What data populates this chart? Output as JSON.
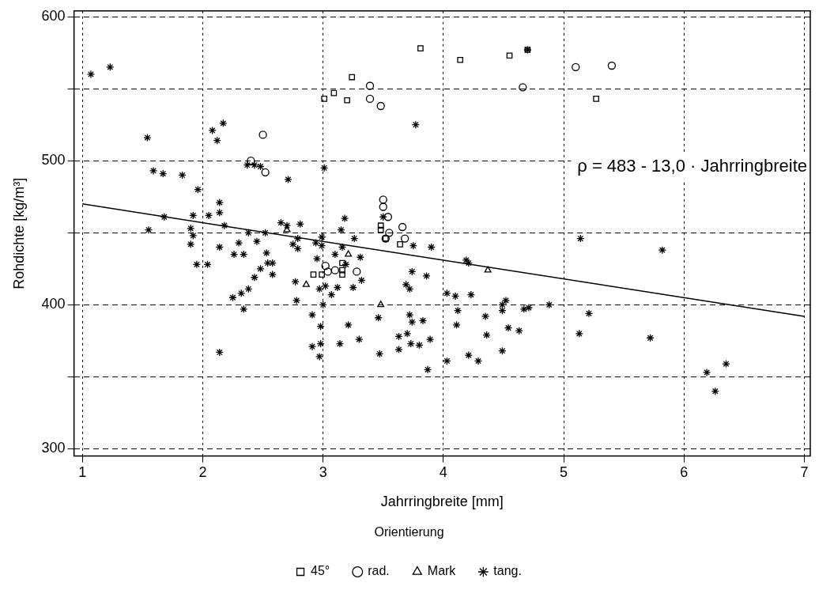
{
  "chart_data": {
    "type": "scatter",
    "xlabel": "Jahrringbreite [mm]",
    "ylabel": "Rohdichte [kg/m³]",
    "legend_title": "Orientierung",
    "annotations": [
      "ρ = 483 - 13,0 · Jahrringbreite"
    ],
    "xlim": [
      0.93,
      7.05
    ],
    "ylim": [
      295,
      604
    ],
    "xticks": [
      1,
      2,
      3,
      4,
      5,
      6,
      7
    ],
    "yticks": [
      300,
      {
        "value": 350,
        "label": null
      },
      400,
      {
        "value": 450,
        "label": null
      },
      500,
      {
        "value": 550,
        "label": null
      },
      600
    ],
    "grid": true,
    "legend": "bottom",
    "series": [
      {
        "name": "45°",
        "color": "#000000",
        "marker": "square",
        "x": [
          3.81,
          3.24,
          3.09,
          3.01,
          3.2,
          4.14,
          4.55,
          4.7,
          5.27,
          2.92,
          2.99,
          3.48,
          3.48,
          3.52,
          3.64,
          3.16,
          3.16,
          3.16
        ],
        "values": [
          578,
          558,
          547,
          543,
          542,
          570,
          573,
          577,
          543,
          421,
          421,
          455,
          452,
          446,
          442,
          429,
          421,
          424
        ]
      },
      {
        "name": "rad.",
        "color": "#000000",
        "marker": "circle",
        "x": [
          3.39,
          3.39,
          3.48,
          2.5,
          2.4,
          2.52,
          3.5,
          3.5,
          3.54,
          3.52,
          3.55,
          3.66,
          3.68,
          3.02,
          3.04,
          3.1,
          3.28,
          4.66,
          5.1,
          5.4
        ],
        "values": [
          552,
          543,
          538,
          518,
          500,
          492,
          473,
          468,
          461,
          446,
          450,
          454,
          446,
          427,
          423,
          424,
          423,
          551,
          565,
          566
        ]
      },
      {
        "name": "Mark",
        "color": "#000000",
        "marker": "triangle",
        "x": [
          2.7,
          2.86,
          3.21,
          3.48,
          4.37
        ],
        "values": [
          452,
          414,
          435,
          400,
          424
        ]
      },
      {
        "name": "tang.",
        "color": "#000000",
        "marker": "cross",
        "x": [
          1.07,
          1.23,
          3.77,
          1.54,
          2.17,
          2.08,
          2.12,
          2.37,
          2.43,
          2.48,
          3.01,
          1.59,
          1.67,
          1.83,
          1.96,
          2.71,
          3.5,
          3.18,
          2.14,
          2.14,
          1.68,
          1.92,
          2.05,
          2.18,
          2.65,
          2.7,
          2.81,
          1.55,
          1.9,
          1.92,
          1.9,
          1.95,
          2.04,
          2.14,
          2.38,
          2.52,
          2.45,
          2.3,
          2.26,
          2.34,
          2.53,
          2.54,
          2.58,
          2.48,
          2.58,
          2.43,
          2.38,
          2.32,
          2.25,
          2.34,
          2.14,
          2.79,
          2.75,
          2.79,
          2.94,
          2.99,
          2.99,
          2.95,
          3.1,
          2.77,
          2.78,
          2.97,
          3.02,
          3.07,
          3.12,
          3.0,
          2.91,
          2.98,
          2.91,
          2.98,
          2.97,
          3.14,
          3.15,
          3.26,
          3.75,
          3.9,
          3.16,
          3.31,
          3.19,
          3.32,
          3.25,
          3.74,
          3.86,
          3.69,
          3.72,
          3.21,
          3.46,
          3.72,
          3.74,
          3.83,
          3.63,
          3.7,
          3.89,
          3.73,
          3.8,
          3.63,
          3.3,
          3.47,
          3.87,
          4.19,
          4.21,
          4.03,
          4.1,
          4.23,
          4.12,
          4.11,
          4.35,
          4.36,
          4.03,
          4.21,
          4.29,
          4.49,
          4.54,
          4.63,
          4.52,
          4.49,
          4.49,
          4.67,
          4.71,
          4.88,
          5.14,
          5.82,
          5.21,
          5.13,
          5.72,
          6.35,
          6.19,
          6.26,
          4.7
        ],
        "values": [
          560,
          565,
          525,
          516,
          526,
          521,
          514,
          497,
          497,
          496,
          495,
          493,
          491,
          490,
          480,
          487,
          461,
          460,
          471,
          464,
          461,
          462,
          462,
          455,
          457,
          455,
          456,
          452,
          453,
          448,
          442,
          428,
          428,
          440,
          450,
          450,
          444,
          443,
          435,
          435,
          436,
          429,
          429,
          425,
          421,
          419,
          411,
          408,
          405,
          397,
          367,
          446,
          442,
          439,
          443,
          447,
          441,
          432,
          435,
          416,
          403,
          411,
          413,
          407,
          412,
          400,
          393,
          385,
          371,
          373,
          364,
          373,
          452,
          446,
          441,
          440,
          440,
          433,
          428,
          417,
          412,
          423,
          420,
          414,
          411,
          386,
          391,
          393,
          388,
          389,
          378,
          380,
          376,
          373,
          372,
          369,
          376,
          366,
          355,
          431,
          429,
          408,
          406,
          407,
          396,
          386,
          392,
          379,
          361,
          365,
          361,
          368,
          384,
          382,
          403,
          400,
          396,
          397,
          398,
          400,
          446,
          438,
          394,
          380,
          377,
          359,
          353,
          340,
          577
        ]
      },
      {
        "type": "line",
        "color": "#000000",
        "marker": "none",
        "x": [
          1,
          7
        ],
        "values": [
          470,
          392
        ]
      }
    ]
  }
}
